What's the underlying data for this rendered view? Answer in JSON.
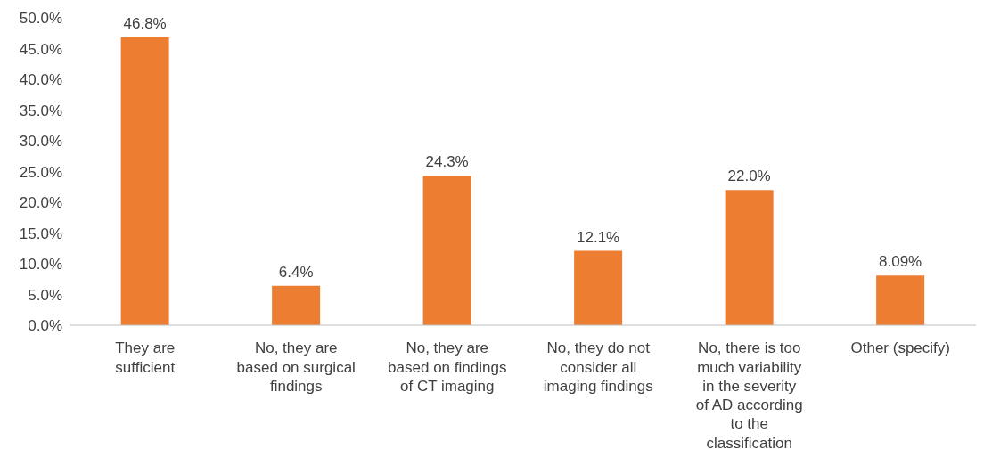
{
  "chart_data": {
    "type": "bar",
    "categories": [
      "They are sufficient",
      "No, they are based on surgical findings",
      "No, they are based on findings of CT imaging",
      "No, they do not consider all imaging findings",
      "No, there is too much variability in the severity of AD according to the classification",
      "Other (specify)"
    ],
    "values": [
      46.8,
      6.4,
      24.3,
      12.1,
      22.0,
      8.09
    ],
    "value_labels": [
      "46.8%",
      "6.4%",
      "24.3%",
      "12.1%",
      "22.0%",
      "8.09%"
    ],
    "color": "#ed7d31",
    "ylim": [
      0,
      50
    ],
    "yticks": [
      {
        "value": 0,
        "label": "0.0%"
      },
      {
        "value": 5,
        "label": "5.0%"
      },
      {
        "value": 10,
        "label": "10.0%"
      },
      {
        "value": 15,
        "label": "15.0%"
      },
      {
        "value": 20,
        "label": "20.0%"
      },
      {
        "value": 25,
        "label": "25.0%"
      },
      {
        "value": 30,
        "label": "30.0%"
      },
      {
        "value": 35,
        "label": "35.0%"
      },
      {
        "value": 40,
        "label": "40.0%"
      },
      {
        "value": 45,
        "label": "45.0%"
      },
      {
        "value": 50,
        "label": "50.0%"
      }
    ],
    "grid": false,
    "legend": false
  }
}
